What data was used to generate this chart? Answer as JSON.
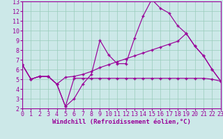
{
  "background_color": "#cce8e8",
  "grid_color": "#99ccbb",
  "line_color": "#990099",
  "xlim": [
    0,
    23
  ],
  "ylim": [
    2,
    13
  ],
  "xlabel": "Windchill (Refroidissement éolien,°C)",
  "xlabel_fontsize": 6.5,
  "xticks": [
    0,
    1,
    2,
    3,
    4,
    5,
    6,
    7,
    8,
    9,
    10,
    11,
    12,
    13,
    14,
    15,
    16,
    17,
    18,
    19,
    20,
    21,
    22,
    23
  ],
  "yticks": [
    2,
    3,
    4,
    5,
    6,
    7,
    8,
    9,
    10,
    11,
    12,
    13
  ],
  "tick_fontsize": 6.0,
  "line1_x": [
    0,
    1,
    2,
    3,
    4,
    5,
    6,
    7,
    8,
    9,
    10,
    11,
    12,
    13,
    14,
    15,
    16,
    17,
    18,
    19,
    20,
    21,
    22,
    23
  ],
  "line1_y": [
    6.5,
    5.0,
    5.3,
    5.3,
    4.5,
    2.2,
    3.0,
    4.5,
    5.5,
    9.0,
    7.5,
    6.6,
    6.6,
    9.2,
    11.5,
    13.2,
    12.3,
    11.8,
    10.5,
    9.7,
    8.4,
    7.4,
    6.0,
    4.8
  ],
  "line2_x": [
    0,
    1,
    2,
    3,
    4,
    5,
    6,
    7,
    8,
    9,
    10,
    11,
    12,
    13,
    14,
    15,
    16,
    17,
    18,
    19,
    20,
    21,
    22,
    23
  ],
  "line2_y": [
    6.5,
    5.0,
    5.3,
    5.3,
    4.5,
    5.2,
    5.3,
    5.5,
    5.8,
    6.2,
    6.5,
    6.8,
    7.1,
    7.4,
    7.7,
    8.0,
    8.3,
    8.6,
    8.9,
    9.7,
    8.4,
    7.4,
    6.0,
    4.8
  ],
  "line3_x": [
    0,
    1,
    2,
    3,
    4,
    5,
    6,
    7,
    8,
    9,
    10,
    11,
    12,
    13,
    14,
    15,
    16,
    17,
    18,
    19,
    20,
    21,
    22,
    23
  ],
  "line3_y": [
    6.5,
    5.0,
    5.3,
    5.3,
    4.5,
    2.2,
    5.1,
    5.1,
    5.1,
    5.1,
    5.1,
    5.1,
    5.1,
    5.1,
    5.1,
    5.1,
    5.1,
    5.1,
    5.1,
    5.1,
    5.1,
    5.1,
    5.0,
    4.8
  ]
}
